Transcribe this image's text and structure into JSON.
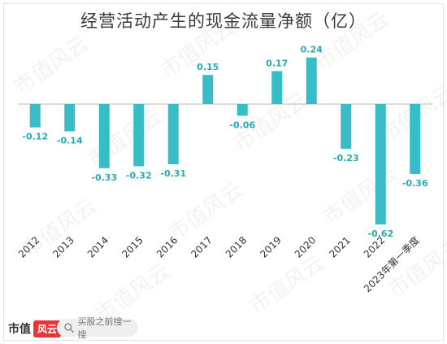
{
  "brand": {
    "name": "市值",
    "badge": "风云"
  },
  "search": {
    "placeholder": "买股之前搜一搜"
  },
  "watermark_text": "市值风云",
  "colors": {
    "bar": "#38bcc6",
    "label": "#2aa9b3",
    "axis": "#cfcfcf",
    "tick": "#333333",
    "title": "#3a3a3a"
  },
  "chart_data": {
    "type": "bar",
    "title": "经营活动产生的现金流量净额（亿）",
    "xlabel": "",
    "ylabel": "",
    "categories": [
      "2012",
      "2013",
      "2014",
      "2015",
      "2016",
      "2017",
      "2018",
      "2019",
      "2020",
      "2021",
      "2022",
      "2023年第一季度"
    ],
    "values": [
      -0.12,
      -0.14,
      -0.33,
      -0.32,
      -0.31,
      0.15,
      -0.06,
      0.17,
      0.24,
      -0.23,
      -0.62,
      -0.36
    ],
    "value_labels": [
      "-0.12",
      "-0.14",
      "-0.33",
      "-0.32",
      "-0.31",
      "0.15",
      "-0.06",
      "0.17",
      "0.24",
      "-0.23",
      "-0.62",
      "-0.36"
    ],
    "ylim": [
      -0.62,
      0.24
    ],
    "grid": false,
    "legend": "none"
  }
}
